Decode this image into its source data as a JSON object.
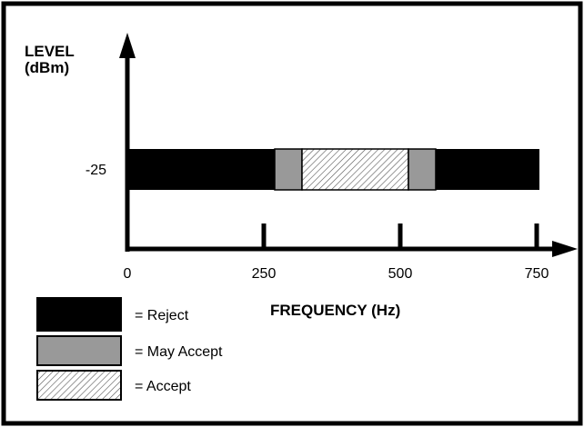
{
  "axes": {
    "y_label_line1": "LEVEL",
    "y_label_line2": "(dBm)",
    "x_label": "FREQUENCY (Hz)"
  },
  "chart_data": {
    "type": "bar",
    "title": "",
    "xlabel": "FREQUENCY (Hz)",
    "ylabel": "LEVEL (dBm)",
    "x_ticks": [
      "0",
      "250",
      "500",
      "750"
    ],
    "y_ticks": [
      "-25"
    ],
    "xlim": [
      0,
      800
    ],
    "level_dBm": -25,
    "bands": [
      {
        "category": "reject",
        "from_hz": 0,
        "to_hz": 270
      },
      {
        "category": "may_accept",
        "from_hz": 270,
        "to_hz": 320
      },
      {
        "category": "accept",
        "from_hz": 320,
        "to_hz": 515
      },
      {
        "category": "may_accept",
        "from_hz": 515,
        "to_hz": 565
      },
      {
        "category": "reject",
        "from_hz": 565,
        "to_hz": 755
      }
    ]
  },
  "legend": {
    "reject": "= Reject",
    "may_accept": "= May Accept",
    "accept": "= Accept"
  },
  "colors": {
    "reject": "#000000",
    "may_accept": "#999999",
    "accept_bg": "#ffffff",
    "accept_hatch": "#555555",
    "frame": "#000000"
  }
}
